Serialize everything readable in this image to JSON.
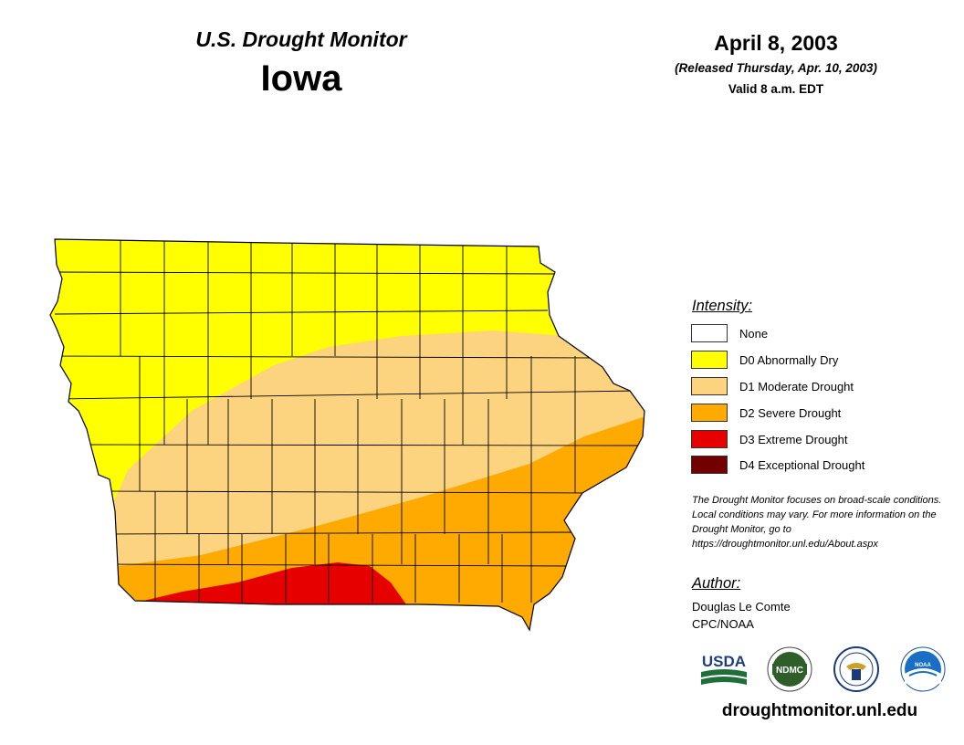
{
  "header": {
    "product_title": "U.S. Drought Monitor",
    "state": "Iowa",
    "date": "April 8, 2003",
    "released": "(Released Thursday, Apr. 10, 2003)",
    "valid": "Valid 8 a.m. EDT"
  },
  "legend": {
    "title": "Intensity:",
    "items": [
      {
        "label": "None",
        "color": "#ffffff"
      },
      {
        "label": "D0 Abnormally Dry",
        "color": "#ffff00"
      },
      {
        "label": "D1 Moderate Drought",
        "color": "#fcd37f"
      },
      {
        "label": "D2 Severe Drought",
        "color": "#ffaa00"
      },
      {
        "label": "D3 Extreme Drought",
        "color": "#e60000"
      },
      {
        "label": "D4 Exceptional Drought",
        "color": "#730000"
      }
    ]
  },
  "note": "The Drought Monitor focuses on broad-scale conditions. Local conditions may vary. For more information on the Drought Monitor, go to https://droughtmonitor.unl.edu/About.aspx",
  "author": {
    "title": "Author:",
    "name": "Douglas Le Comte",
    "org": "CPC/NOAA"
  },
  "logos": {
    "usda": "USDA",
    "ndmc": "NDMC",
    "doc_icon": "eagle-seal-icon",
    "noaa": "NOAA"
  },
  "footer": {
    "url": "droughtmonitor.unl.edu"
  }
}
